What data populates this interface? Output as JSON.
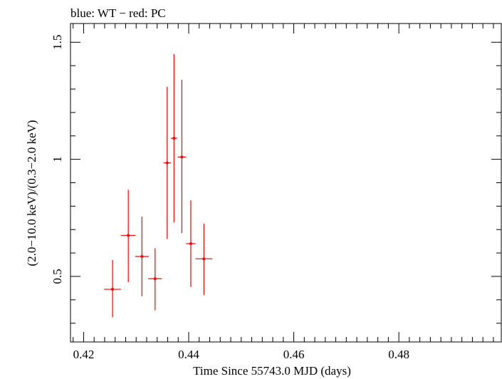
{
  "chart_data": {
    "type": "scatter",
    "title": "blue: WT − red: PC",
    "xlabel": "Time Since 55743.0 MJD (days)",
    "ylabel": "(2.0−10.0 keV)/(0.3−2.0 keV)",
    "xlim": [
      0.4175,
      0.4995
    ],
    "ylim": [
      0.22,
      1.58
    ],
    "x_major_ticks": [
      0.42,
      0.44,
      0.46,
      0.48
    ],
    "x_tick_labels": [
      "0.42",
      "0.44",
      "0.46",
      "0.48"
    ],
    "x_minor_step": 0.002,
    "y_major_ticks": [
      0.5,
      1.0,
      1.5
    ],
    "y_tick_labels": [
      "0.5",
      "1",
      "1.5"
    ],
    "y_minor_step": 0.1,
    "series": [
      {
        "name": "PC",
        "color": "#ff0000",
        "points": [
          {
            "x": 0.4255,
            "xerr": 0.0016,
            "y": 0.445,
            "ylo": 0.325,
            "yhi": 0.57
          },
          {
            "x": 0.4285,
            "xerr": 0.0014,
            "y": 0.675,
            "ylo": 0.475,
            "yhi": 0.87
          },
          {
            "x": 0.4311,
            "xerr": 0.0013,
            "y": 0.585,
            "ylo": 0.415,
            "yhi": 0.755
          },
          {
            "x": 0.4336,
            "xerr": 0.0013,
            "y": 0.49,
            "ylo": 0.355,
            "yhi": 0.62
          },
          {
            "x": 0.4359,
            "xerr": 0.0007,
            "y": 0.985,
            "ylo": 0.66,
            "yhi": 1.31
          },
          {
            "x": 0.4372,
            "xerr": 0.0006,
            "y": 1.09,
            "ylo": 0.73,
            "yhi": 1.45
          },
          {
            "x": 0.4387,
            "xerr": 0.0008,
            "y": 1.01,
            "ylo": 0.685,
            "yhi": 1.34
          },
          {
            "x": 0.4404,
            "xerr": 0.0009,
            "y": 0.64,
            "ylo": 0.455,
            "yhi": 0.825
          },
          {
            "x": 0.4429,
            "xerr": 0.0016,
            "y": 0.575,
            "ylo": 0.42,
            "yhi": 0.725
          }
        ]
      }
    ]
  }
}
